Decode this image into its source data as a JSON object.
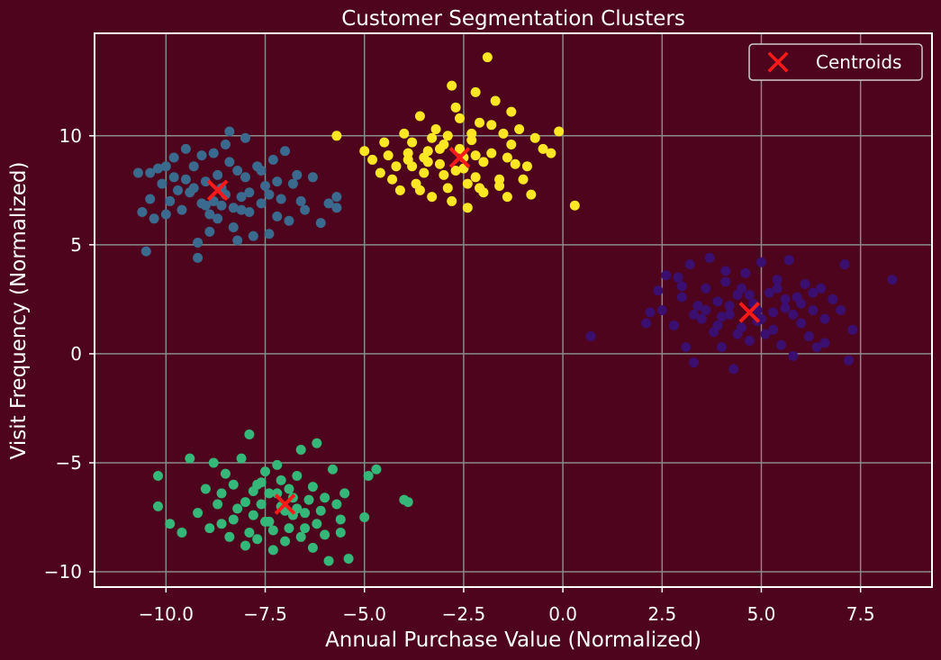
{
  "chart_data": {
    "type": "scatter",
    "title": "Customer Segmentation Clusters",
    "xlabel": "Annual Purchase Value (Normalized)",
    "ylabel": "Visit Frequency (Normalized)",
    "xlim": [
      -11.8,
      9.3
    ],
    "ylim": [
      -10.7,
      14.7
    ],
    "xticks": [
      -10.0,
      -7.5,
      -5.0,
      -2.5,
      0.0,
      2.5,
      5.0,
      7.5
    ],
    "xtick_labels": [
      "−10.0",
      "−7.5",
      "−5.0",
      "−2.5",
      "0.0",
      "2.5",
      "5.0",
      "7.5"
    ],
    "yticks": [
      -10,
      -5,
      0,
      5,
      10
    ],
    "ytick_labels": [
      "−10",
      "−5",
      "0",
      "5",
      "10"
    ],
    "grid": true,
    "legend": {
      "position": "top-right",
      "entries": [
        "Centroids"
      ]
    },
    "colors": {
      "background": "#4d041c",
      "grid": "#8a8a8a",
      "axes": "#ffffff",
      "centroid": "#ff1a1a",
      "legend_box": "#4d041c"
    },
    "clusters": [
      {
        "color": "#3b6a8f",
        "points": [
          [
            -10.7,
            8.3
          ],
          [
            -10.6,
            6.5
          ],
          [
            -10.5,
            4.7
          ],
          [
            -10.4,
            8.3
          ],
          [
            -10.3,
            6.2
          ],
          [
            -10.2,
            8.5
          ],
          [
            -10.1,
            7.8
          ],
          [
            -10.0,
            6.4
          ],
          [
            -9.9,
            7.0
          ],
          [
            -9.8,
            8.1
          ],
          [
            -9.7,
            7.5
          ],
          [
            -9.6,
            6.6
          ],
          [
            -9.5,
            9.4
          ],
          [
            -9.4,
            7.4
          ],
          [
            -9.3,
            8.6
          ],
          [
            -9.2,
            5.1
          ],
          [
            -9.2,
            4.4
          ],
          [
            -9.1,
            6.9
          ],
          [
            -9.0,
            7.9
          ],
          [
            -8.9,
            6.4
          ],
          [
            -8.8,
            9.2
          ],
          [
            -8.7,
            8.2
          ],
          [
            -8.6,
            6.8
          ],
          [
            -8.5,
            7.3
          ],
          [
            -8.4,
            10.2
          ],
          [
            -8.3,
            5.8
          ],
          [
            -8.2,
            8.4
          ],
          [
            -8.1,
            6.6
          ],
          [
            -8.0,
            9.9
          ],
          [
            -7.9,
            7.4
          ],
          [
            -7.8,
            5.4
          ],
          [
            -7.7,
            8.6
          ],
          [
            -7.6,
            6.9
          ],
          [
            -7.5,
            7.7
          ],
          [
            -7.4,
            5.5
          ],
          [
            -7.3,
            8.9
          ],
          [
            -7.2,
            6.3
          ],
          [
            -7.1,
            7.1
          ],
          [
            -7.0,
            9.3
          ],
          [
            -6.9,
            6.1
          ],
          [
            -6.8,
            7.8
          ],
          [
            -6.7,
            8.2
          ],
          [
            -6.6,
            7.0
          ],
          [
            -6.5,
            6.6
          ],
          [
            -6.3,
            8.1
          ],
          [
            -6.1,
            6.0
          ],
          [
            -5.9,
            6.9
          ],
          [
            -5.7,
            6.7
          ],
          [
            -5.7,
            7.2
          ],
          [
            -8.6,
            7.6
          ],
          [
            -9.5,
            8.0
          ],
          [
            -8.1,
            7.2
          ],
          [
            -9.0,
            6.8
          ],
          [
            -8.3,
            6.7
          ],
          [
            -7.6,
            8.4
          ],
          [
            -9.8,
            9.0
          ],
          [
            -8.9,
            5.6
          ],
          [
            -8.5,
            9.6
          ],
          [
            -7.9,
            6.5
          ],
          [
            -10.4,
            7.1
          ],
          [
            -9.3,
            7.6
          ],
          [
            -8.7,
            6.2
          ],
          [
            -8.0,
            8.1
          ],
          [
            -7.4,
            7.3
          ],
          [
            -9.1,
            9.1
          ],
          [
            -8.2,
            5.2
          ],
          [
            -10.0,
            8.6
          ],
          [
            -8.8,
            7.0
          ],
          [
            -7.2,
            7.9
          ],
          [
            -8.4,
            8.8
          ]
        ]
      },
      {
        "color": "#fde725",
        "points": [
          [
            -5.7,
            10.0
          ],
          [
            -5.0,
            9.3
          ],
          [
            -4.8,
            8.9
          ],
          [
            -4.6,
            8.3
          ],
          [
            -4.4,
            9.1
          ],
          [
            -4.2,
            8.6
          ],
          [
            -4.1,
            7.5
          ],
          [
            -4.0,
            10.1
          ],
          [
            -3.9,
            8.9
          ],
          [
            -3.8,
            9.7
          ],
          [
            -3.7,
            7.8
          ],
          [
            -3.6,
            10.9
          ],
          [
            -3.5,
            8.3
          ],
          [
            -3.4,
            9.3
          ],
          [
            -3.3,
            7.2
          ],
          [
            -3.2,
            10.3
          ],
          [
            -3.1,
            8.7
          ],
          [
            -3.0,
            9.6
          ],
          [
            -2.9,
            7.6
          ],
          [
            -2.8,
            12.3
          ],
          [
            -2.7,
            8.4
          ],
          [
            -2.6,
            10.8
          ],
          [
            -2.5,
            9.0
          ],
          [
            -2.4,
            6.7
          ],
          [
            -2.3,
            9.8
          ],
          [
            -2.2,
            8.1
          ],
          [
            -2.1,
            10.6
          ],
          [
            -2.0,
            7.4
          ],
          [
            -1.9,
            13.6
          ],
          [
            -1.8,
            9.2
          ],
          [
            -1.7,
            11.6
          ],
          [
            -1.6,
            8.0
          ],
          [
            -1.5,
            10.1
          ],
          [
            -1.4,
            7.2
          ],
          [
            -1.3,
            9.6
          ],
          [
            -1.2,
            8.7
          ],
          [
            -1.1,
            10.3
          ],
          [
            -1.0,
            8.0
          ],
          [
            -0.8,
            7.3
          ],
          [
            -0.7,
            9.9
          ],
          [
            -0.5,
            9.4
          ],
          [
            -0.3,
            9.2
          ],
          [
            -0.1,
            10.2
          ],
          [
            0.3,
            6.8
          ],
          [
            -3.5,
            9.0
          ],
          [
            -3.0,
            8.2
          ],
          [
            -2.6,
            9.4
          ],
          [
            -2.2,
            9.1
          ],
          [
            -3.8,
            8.6
          ],
          [
            -2.9,
            10.0
          ],
          [
            -2.4,
            7.8
          ],
          [
            -3.3,
            9.9
          ],
          [
            -2.0,
            8.8
          ],
          [
            -4.3,
            8.0
          ],
          [
            -2.7,
            11.3
          ],
          [
            -1.8,
            10.5
          ],
          [
            -3.6,
            7.5
          ],
          [
            -2.5,
            8.5
          ],
          [
            -1.4,
            9.0
          ],
          [
            -3.1,
            9.4
          ],
          [
            -2.2,
            12.0
          ],
          [
            -4.5,
            9.7
          ],
          [
            -2.8,
            7.0
          ],
          [
            -1.6,
            7.7
          ],
          [
            -3.9,
            9.2
          ],
          [
            -2.3,
            10.1
          ],
          [
            -0.9,
            8.6
          ],
          [
            -1.3,
            11.1
          ],
          [
            -3.4,
            8.8
          ],
          [
            -2.1,
            7.6
          ]
        ]
      },
      {
        "color": "#3b0f6f",
        "points": [
          [
            0.7,
            0.8
          ],
          [
            2.1,
            1.4
          ],
          [
            2.2,
            1.9
          ],
          [
            2.5,
            2.0
          ],
          [
            2.6,
            3.6
          ],
          [
            2.8,
            1.3
          ],
          [
            2.9,
            3.5
          ],
          [
            3.0,
            2.6
          ],
          [
            3.1,
            0.3
          ],
          [
            3.2,
            4.1
          ],
          [
            3.3,
            -0.4
          ],
          [
            3.4,
            2.2
          ],
          [
            3.5,
            1.6
          ],
          [
            3.6,
            3.0
          ],
          [
            3.7,
            4.4
          ],
          [
            3.8,
            1.0
          ],
          [
            3.9,
            2.4
          ],
          [
            4.0,
            0.3
          ],
          [
            4.1,
            3.3
          ],
          [
            4.2,
            1.8
          ],
          [
            4.3,
            -0.7
          ],
          [
            4.4,
            2.7
          ],
          [
            4.5,
            1.2
          ],
          [
            4.6,
            3.7
          ],
          [
            4.7,
            0.6
          ],
          [
            4.8,
            2.3
          ],
          [
            4.9,
            1.5
          ],
          [
            5.0,
            4.2
          ],
          [
            5.1,
            0.9
          ],
          [
            5.2,
            2.8
          ],
          [
            5.3,
            1.9
          ],
          [
            5.4,
            3.4
          ],
          [
            5.5,
            0.4
          ],
          [
            5.6,
            2.1
          ],
          [
            5.7,
            4.3
          ],
          [
            5.8,
            -0.1
          ],
          [
            5.9,
            2.6
          ],
          [
            6.0,
            1.4
          ],
          [
            6.1,
            3.2
          ],
          [
            6.2,
            0.8
          ],
          [
            6.3,
            2.0
          ],
          [
            6.4,
            0.3
          ],
          [
            6.5,
            3.0
          ],
          [
            6.6,
            1.6
          ],
          [
            6.8,
            2.5
          ],
          [
            7.0,
            2.0
          ],
          [
            7.1,
            4.1
          ],
          [
            7.2,
            -0.3
          ],
          [
            7.3,
            1.1
          ],
          [
            8.3,
            3.4
          ],
          [
            4.0,
            1.7
          ],
          [
            3.6,
            2.0
          ],
          [
            4.9,
            2.0
          ],
          [
            5.3,
            1.1
          ],
          [
            4.5,
            3.0
          ],
          [
            3.9,
            1.3
          ],
          [
            5.6,
            2.5
          ],
          [
            4.2,
            2.2
          ],
          [
            5.0,
            1.6
          ],
          [
            4.7,
            2.7
          ],
          [
            3.3,
            1.8
          ],
          [
            6.0,
            2.3
          ],
          [
            4.4,
            0.9
          ],
          [
            5.4,
            3.0
          ],
          [
            3.0,
            3.1
          ],
          [
            5.8,
            1.8
          ],
          [
            6.3,
            2.8
          ],
          [
            4.1,
            3.8
          ],
          [
            2.4,
            2.9
          ],
          [
            6.6,
            0.5
          ]
        ]
      },
      {
        "color": "#35b779",
        "points": [
          [
            -10.2,
            -5.6
          ],
          [
            -10.2,
            -7.0
          ],
          [
            -9.9,
            -7.8
          ],
          [
            -9.6,
            -8.2
          ],
          [
            -9.4,
            -4.8
          ],
          [
            -9.2,
            -7.3
          ],
          [
            -9.0,
            -6.2
          ],
          [
            -8.9,
            -8.0
          ],
          [
            -8.8,
            -5.0
          ],
          [
            -8.7,
            -6.9
          ],
          [
            -8.6,
            -7.8
          ],
          [
            -8.5,
            -5.5
          ],
          [
            -8.4,
            -8.4
          ],
          [
            -8.3,
            -6.0
          ],
          [
            -8.2,
            -7.1
          ],
          [
            -8.1,
            -4.8
          ],
          [
            -8.0,
            -8.8
          ],
          [
            -7.9,
            -3.7
          ],
          [
            -7.8,
            -6.3
          ],
          [
            -7.7,
            -8.5
          ],
          [
            -7.6,
            -5.9
          ],
          [
            -7.5,
            -7.7
          ],
          [
            -7.4,
            -6.4
          ],
          [
            -7.3,
            -8.1
          ],
          [
            -7.2,
            -5.1
          ],
          [
            -7.1,
            -7.0
          ],
          [
            -7.0,
            -8.6
          ],
          [
            -6.9,
            -6.2
          ],
          [
            -6.8,
            -7.4
          ],
          [
            -6.7,
            -5.6
          ],
          [
            -6.6,
            -4.4
          ],
          [
            -6.5,
            -8.0
          ],
          [
            -6.4,
            -6.7
          ],
          [
            -6.3,
            -8.9
          ],
          [
            -6.2,
            -4.1
          ],
          [
            -6.1,
            -7.2
          ],
          [
            -6.0,
            -8.3
          ],
          [
            -5.9,
            -9.5
          ],
          [
            -5.8,
            -5.3
          ],
          [
            -5.7,
            -6.9
          ],
          [
            -5.6,
            -7.6
          ],
          [
            -5.5,
            -6.4
          ],
          [
            -5.4,
            -9.4
          ],
          [
            -5.0,
            -7.5
          ],
          [
            -4.9,
            -5.6
          ],
          [
            -4.7,
            -5.3
          ],
          [
            -4.0,
            -6.7
          ],
          [
            -3.9,
            -6.8
          ],
          [
            -7.0,
            -7.2
          ],
          [
            -7.4,
            -7.7
          ],
          [
            -6.8,
            -6.6
          ],
          [
            -7.6,
            -6.9
          ],
          [
            -6.5,
            -7.3
          ],
          [
            -7.2,
            -6.4
          ],
          [
            -6.9,
            -8.0
          ],
          [
            -7.8,
            -7.4
          ],
          [
            -6.3,
            -6.1
          ],
          [
            -7.1,
            -5.8
          ],
          [
            -6.6,
            -8.4
          ],
          [
            -7.5,
            -5.4
          ],
          [
            -8.0,
            -6.8
          ],
          [
            -6.2,
            -7.8
          ],
          [
            -7.3,
            -9.0
          ],
          [
            -8.3,
            -7.6
          ],
          [
            -6.0,
            -6.6
          ],
          [
            -7.7,
            -6.0
          ],
          [
            -6.7,
            -7.1
          ],
          [
            -8.6,
            -6.4
          ],
          [
            -5.6,
            -8.2
          ],
          [
            -7.9,
            -8.2
          ]
        ]
      }
    ],
    "centroids": [
      [
        -8.7,
        7.5
      ],
      [
        -2.6,
        9.0
      ],
      [
        4.7,
        1.9
      ],
      [
        -7.0,
        -6.9
      ]
    ]
  }
}
